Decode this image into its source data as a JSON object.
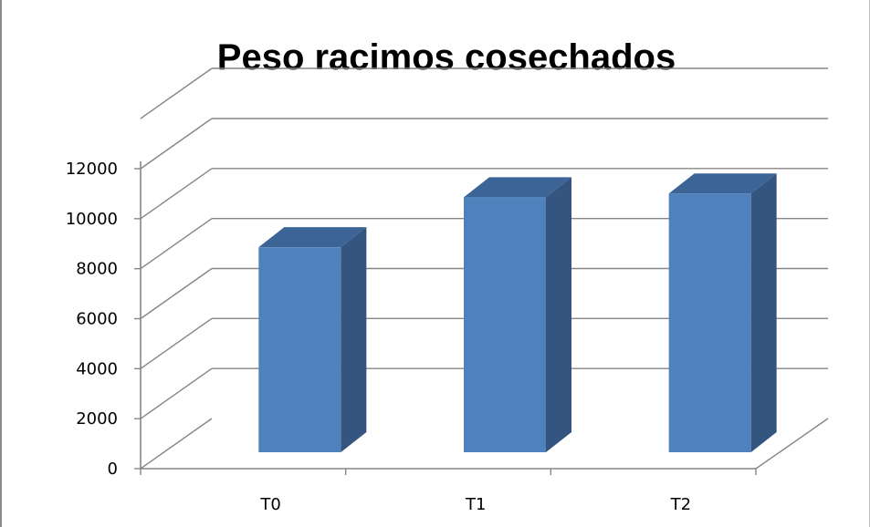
{
  "chart_data": {
    "type": "bar",
    "title": "Peso racimos cosechados",
    "xlabel": "",
    "ylabel": "",
    "categories": [
      "T0",
      "T1",
      "T2"
    ],
    "values": [
      8200,
      10200,
      10350
    ],
    "ylim": [
      0,
      12000
    ],
    "yticks": [
      0,
      2000,
      4000,
      6000,
      8000,
      10000,
      12000
    ],
    "ytick_labels": [
      "0",
      "2000",
      "4000",
      "6000",
      "8000",
      "10000",
      "12000"
    ],
    "grid": true,
    "legend": "none",
    "style": "3d-column",
    "colors": {
      "bar_front": "#4f81bd",
      "bar_side": "#33557f",
      "bar_top": "#3c6496",
      "grid": "#868686"
    }
  }
}
